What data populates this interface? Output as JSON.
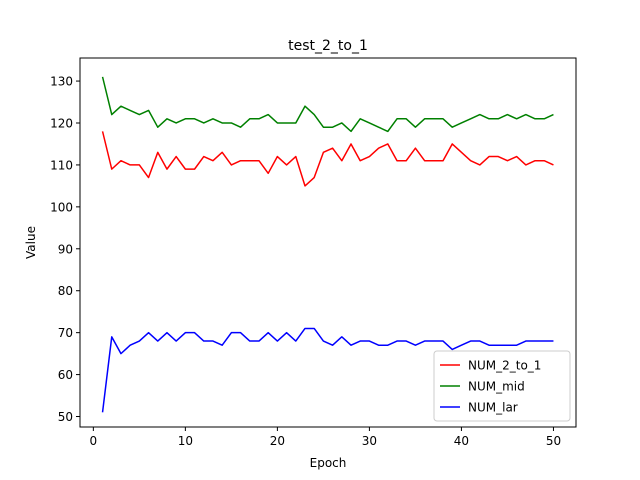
{
  "chart_data": {
    "type": "line",
    "title": "test_2_to_1",
    "xlabel": "Epoch",
    "ylabel": "Value",
    "xlim": [
      -1.45,
      52.45
    ],
    "ylim": [
      47.5,
      135.5
    ],
    "xticks": [
      0,
      10,
      20,
      30,
      40,
      50
    ],
    "yticks": [
      50,
      60,
      70,
      80,
      90,
      100,
      110,
      120,
      130
    ],
    "grid": false,
    "legend_position": "lower right",
    "x": [
      1,
      2,
      3,
      4,
      5,
      6,
      7,
      8,
      9,
      10,
      11,
      12,
      13,
      14,
      15,
      16,
      17,
      18,
      19,
      20,
      21,
      22,
      23,
      24,
      25,
      26,
      27,
      28,
      29,
      30,
      31,
      32,
      33,
      34,
      35,
      36,
      37,
      38,
      39,
      40,
      41,
      42,
      43,
      44,
      45,
      46,
      47,
      48,
      49,
      50
    ],
    "series": [
      {
        "name": "NUM_2_to_1",
        "color": "#ff0000",
        "values": [
          118,
          109,
          111,
          110,
          110,
          107,
          113,
          109,
          112,
          109,
          109,
          112,
          111,
          113,
          110,
          111,
          111,
          111,
          108,
          112,
          110,
          112,
          105,
          107,
          113,
          114,
          111,
          115,
          111,
          112,
          114,
          115,
          111,
          111,
          114,
          111,
          111,
          111,
          115,
          113,
          111,
          110,
          112,
          112,
          111,
          112,
          110,
          111,
          111,
          110
        ]
      },
      {
        "name": "NUM_mid",
        "color": "#008000",
        "values": [
          131,
          122,
          124,
          123,
          122,
          123,
          119,
          121,
          120,
          121,
          121,
          120,
          121,
          120,
          120,
          119,
          121,
          121,
          122,
          120,
          120,
          120,
          124,
          122,
          119,
          119,
          120,
          118,
          121,
          120,
          119,
          118,
          121,
          121,
          119,
          121,
          121,
          121,
          119,
          120,
          121,
          122,
          121,
          121,
          122,
          121,
          122,
          121,
          121,
          122
        ]
      },
      {
        "name": "NUM_lar",
        "color": "#0000ff",
        "values": [
          51,
          69,
          65,
          67,
          68,
          70,
          68,
          70,
          68,
          70,
          70,
          68,
          68,
          67,
          70,
          70,
          68,
          68,
          70,
          68,
          70,
          68,
          71,
          71,
          68,
          67,
          69,
          67,
          68,
          68,
          67,
          67,
          68,
          68,
          67,
          68,
          68,
          68,
          66,
          67,
          68,
          68,
          67,
          67,
          67,
          67,
          68,
          68,
          68,
          68
        ]
      }
    ]
  }
}
